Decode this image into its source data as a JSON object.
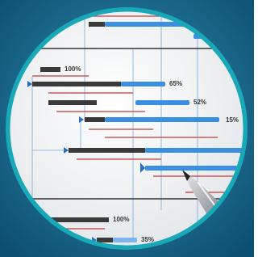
{
  "labels": [
    "100%",
    "65%",
    "52%",
    "15%",
    "100%",
    "35%"
  ]
}
